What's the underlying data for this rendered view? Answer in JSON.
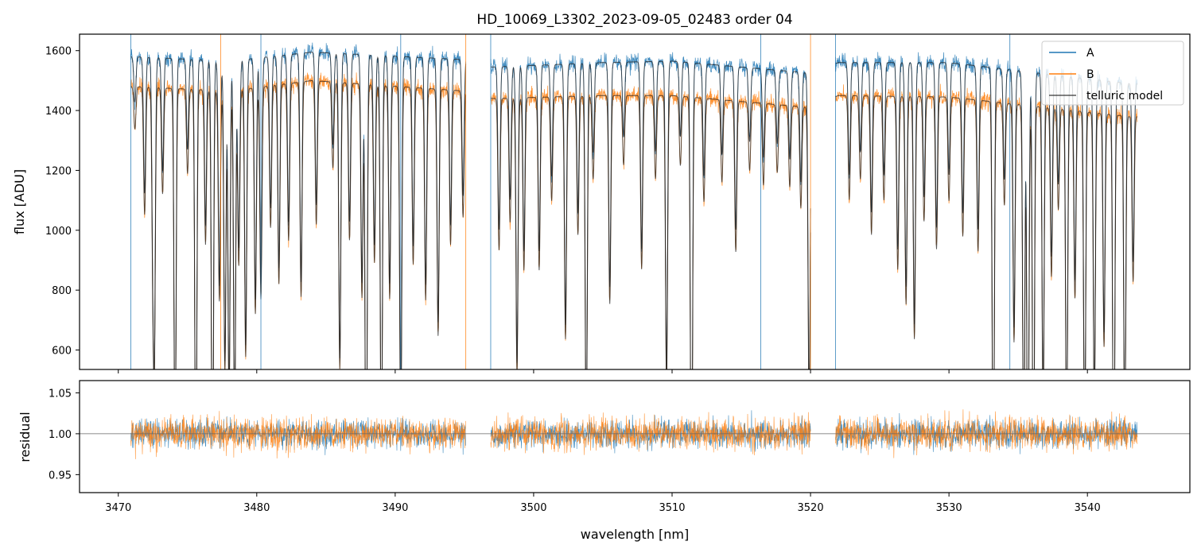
{
  "figure": {
    "title": "HD_10069_L3302_2023-09-05_02483  order 04",
    "xlabel": "wavelength [nm]"
  },
  "colors": {
    "A": "#1f77b4",
    "B": "#ff7f0e",
    "model": "#222222",
    "unity_line": "#666666"
  },
  "chart_data": [
    {
      "panel": "top",
      "type": "line",
      "xlabel": "",
      "ylabel": "flux [ADU]",
      "xlim": [
        3467.2,
        3547.4
      ],
      "ylim": [
        535,
        1655
      ],
      "xticks": [
        3470,
        3480,
        3490,
        3500,
        3510,
        3520,
        3530,
        3540
      ],
      "xtick_labels_shown": false,
      "yticks": [
        600,
        800,
        1000,
        1200,
        1400,
        1600
      ],
      "grid": false,
      "legend_position": "top-right",
      "segments_nm": [
        [
          3470.9,
          3495.1
        ],
        [
          3496.9,
          3520.0
        ],
        [
          3521.8,
          3543.6
        ]
      ],
      "continuum": {
        "A": [
          [
            3471,
            1580
          ],
          [
            3478,
            1565
          ],
          [
            3484,
            1595
          ],
          [
            3495,
            1570
          ],
          [
            3497,
            1545
          ],
          [
            3505,
            1560
          ],
          [
            3510,
            1565
          ],
          [
            3515,
            1545
          ],
          [
            3520,
            1525
          ],
          [
            3522,
            1560
          ],
          [
            3530,
            1560
          ],
          [
            3543,
            1490
          ]
        ],
        "B": [
          [
            3471,
            1480
          ],
          [
            3478,
            1465
          ],
          [
            3484,
            1500
          ],
          [
            3495,
            1465
          ],
          [
            3497,
            1440
          ],
          [
            3505,
            1450
          ],
          [
            3510,
            1450
          ],
          [
            3515,
            1430
          ],
          [
            3520,
            1410
          ],
          [
            3522,
            1450
          ],
          [
            3530,
            1445
          ],
          [
            3543,
            1380
          ]
        ]
      },
      "absorption_lines": [
        {
          "wavelength": 3471.2,
          "depth": 0.06
        },
        {
          "wavelength": 3471.9,
          "depth": 0.18
        },
        {
          "wavelength": 3472.5,
          "depth": 0.24
        },
        {
          "wavelength": 3472.6,
          "depth": 0.38
        },
        {
          "wavelength": 3473.2,
          "depth": 0.15
        },
        {
          "wavelength": 3474.1,
          "depth": 0.55
        },
        {
          "wavelength": 3475.0,
          "depth": 0.12
        },
        {
          "wavelength": 3475.6,
          "depth": 0.58
        },
        {
          "wavelength": 3476.3,
          "depth": 0.22
        },
        {
          "wavelength": 3476.8,
          "depth": 0.62
        },
        {
          "wavelength": 3477.3,
          "depth": 0.3
        },
        {
          "wavelength": 3477.7,
          "depth": 0.4
        },
        {
          "wavelength": 3478.0,
          "depth": 0.45
        },
        {
          "wavelength": 3478.4,
          "depth": 0.5
        },
        {
          "wavelength": 3478.7,
          "depth": 0.25
        },
        {
          "wavelength": 3479.2,
          "depth": 0.38
        },
        {
          "wavelength": 3479.9,
          "depth": 0.32
        },
        {
          "wavelength": 3480.3,
          "depth": 0.3
        },
        {
          "wavelength": 3481.0,
          "depth": 0.2
        },
        {
          "wavelength": 3481.6,
          "depth": 0.28
        },
        {
          "wavelength": 3482.3,
          "depth": 0.22
        },
        {
          "wavelength": 3483.2,
          "depth": 0.3
        },
        {
          "wavelength": 3484.3,
          "depth": 0.2
        },
        {
          "wavelength": 3485.5,
          "depth": 0.12
        },
        {
          "wavelength": 3486.0,
          "depth": 0.4
        },
        {
          "wavelength": 3486.7,
          "depth": 0.22
        },
        {
          "wavelength": 3487.6,
          "depth": 0.3
        },
        {
          "wavelength": 3487.9,
          "depth": 0.62
        },
        {
          "wavelength": 3488.5,
          "depth": 0.25
        },
        {
          "wavelength": 3489.0,
          "depth": 0.55
        },
        {
          "wavelength": 3489.6,
          "depth": 0.3
        },
        {
          "wavelength": 3490.4,
          "depth": 0.5
        },
        {
          "wavelength": 3491.3,
          "depth": 0.25
        },
        {
          "wavelength": 3492.2,
          "depth": 0.3
        },
        {
          "wavelength": 3493.1,
          "depth": 0.35
        },
        {
          "wavelength": 3494.0,
          "depth": 0.22
        },
        {
          "wavelength": 3494.9,
          "depth": 0.18
        },
        {
          "wavelength": 3497.5,
          "depth": 0.22
        },
        {
          "wavelength": 3498.3,
          "depth": 0.18
        },
        {
          "wavelength": 3498.8,
          "depth": 0.4
        },
        {
          "wavelength": 3499.3,
          "depth": 0.25
        },
        {
          "wavelength": 3500.4,
          "depth": 0.25
        },
        {
          "wavelength": 3501.3,
          "depth": 0.15
        },
        {
          "wavelength": 3502.3,
          "depth": 0.35
        },
        {
          "wavelength": 3503.2,
          "depth": 0.2
        },
        {
          "wavelength": 3503.8,
          "depth": 0.5
        },
        {
          "wavelength": 3504.3,
          "depth": 0.12
        },
        {
          "wavelength": 3505.5,
          "depth": 0.3
        },
        {
          "wavelength": 3506.5,
          "depth": 0.1
        },
        {
          "wavelength": 3507.8,
          "depth": 0.25
        },
        {
          "wavelength": 3508.8,
          "depth": 0.12
        },
        {
          "wavelength": 3509.6,
          "depth": 0.42
        },
        {
          "wavelength": 3510.6,
          "depth": 0.1
        },
        {
          "wavelength": 3511.4,
          "depth": 0.65
        },
        {
          "wavelength": 3512.3,
          "depth": 0.15
        },
        {
          "wavelength": 3513.6,
          "depth": 0.12
        },
        {
          "wavelength": 3514.6,
          "depth": 0.22
        },
        {
          "wavelength": 3515.6,
          "depth": 0.1
        },
        {
          "wavelength": 3516.6,
          "depth": 0.12
        },
        {
          "wavelength": 3517.6,
          "depth": 0.1
        },
        {
          "wavelength": 3518.5,
          "depth": 0.12
        },
        {
          "wavelength": 3519.3,
          "depth": 0.15
        },
        {
          "wavelength": 3519.9,
          "depth": 0.45
        },
        {
          "wavelength": 3522.8,
          "depth": 0.15
        },
        {
          "wavelength": 3523.6,
          "depth": 0.12
        },
        {
          "wavelength": 3524.4,
          "depth": 0.2
        },
        {
          "wavelength": 3525.3,
          "depth": 0.15
        },
        {
          "wavelength": 3526.3,
          "depth": 0.25
        },
        {
          "wavelength": 3526.9,
          "depth": 0.3
        },
        {
          "wavelength": 3527.5,
          "depth": 0.35
        },
        {
          "wavelength": 3528.2,
          "depth": 0.18
        },
        {
          "wavelength": 3529.1,
          "depth": 0.22
        },
        {
          "wavelength": 3530.0,
          "depth": 0.15
        },
        {
          "wavelength": 3531.0,
          "depth": 0.2
        },
        {
          "wavelength": 3532.1,
          "depth": 0.22
        },
        {
          "wavelength": 3533.2,
          "depth": 0.6
        },
        {
          "wavelength": 3534.0,
          "depth": 0.15
        },
        {
          "wavelength": 3534.7,
          "depth": 0.35
        },
        {
          "wavelength": 3535.4,
          "depth": 0.55
        },
        {
          "wavelength": 3535.7,
          "depth": 0.62
        },
        {
          "wavelength": 3536.1,
          "depth": 0.6
        },
        {
          "wavelength": 3536.8,
          "depth": 0.45
        },
        {
          "wavelength": 3537.4,
          "depth": 0.25
        },
        {
          "wavelength": 3537.9,
          "depth": 0.15
        },
        {
          "wavelength": 3538.5,
          "depth": 0.5
        },
        {
          "wavelength": 3539.1,
          "depth": 0.28
        },
        {
          "wavelength": 3539.8,
          "depth": 0.52
        },
        {
          "wavelength": 3540.5,
          "depth": 0.45
        },
        {
          "wavelength": 3541.2,
          "depth": 0.35
        },
        {
          "wavelength": 3541.9,
          "depth": 0.62
        },
        {
          "wavelength": 3542.7,
          "depth": 0.5
        },
        {
          "wavelength": 3543.3,
          "depth": 0.25
        }
      ],
      "spikes_nm": [
        3470.9,
        3477.4,
        3480.3,
        3490.4,
        3495.1,
        3496.9,
        3516.4,
        3520.0,
        3521.8,
        3534.4
      ],
      "series": [
        {
          "name": "A",
          "color": "#1f77b4"
        },
        {
          "name": "B",
          "color": "#ff7f0e"
        },
        {
          "name": "telluric model",
          "color": "#222222"
        }
      ]
    },
    {
      "panel": "bottom",
      "type": "line",
      "xlabel": "wavelength [nm]",
      "ylabel": "residual",
      "xlim": [
        3467.2,
        3547.4
      ],
      "ylim": [
        0.928,
        1.065
      ],
      "xticks": [
        3470,
        3480,
        3490,
        3500,
        3510,
        3520,
        3530,
        3540
      ],
      "yticks": [
        0.95,
        1.0,
        1.05
      ],
      "ytick_labels": [
        "0.95",
        "1.00",
        "1.05"
      ],
      "reference_line": 1.0,
      "noise_sigma": {
        "A": 0.022,
        "B": 0.025
      },
      "grid": false,
      "series": [
        {
          "name": "A",
          "color": "#1f77b4"
        },
        {
          "name": "B",
          "color": "#ff7f0e"
        }
      ]
    }
  ]
}
